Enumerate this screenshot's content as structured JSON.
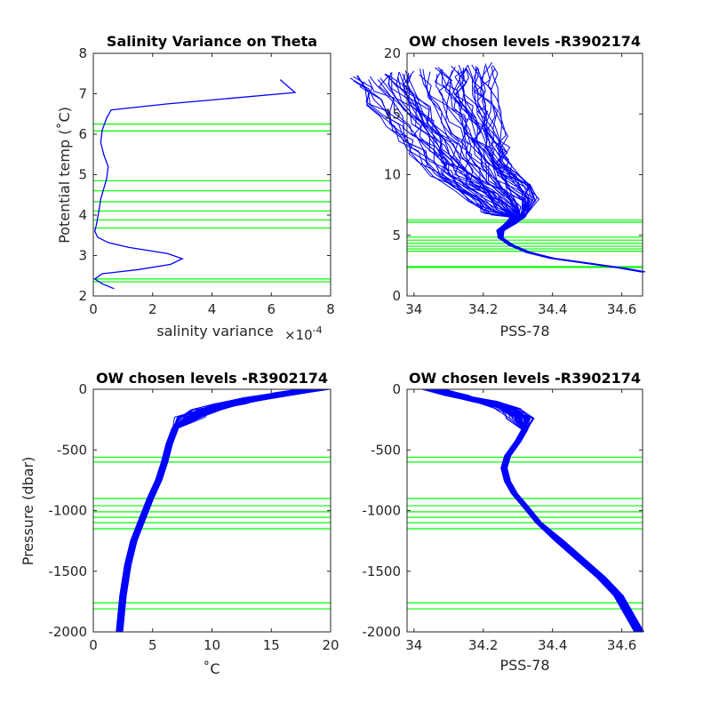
{
  "chart_data": [
    {
      "type": "line",
      "title": "Salinity Variance on Theta",
      "xlabel": "salinity variance",
      "x_exponent_label": "×10",
      "x_exponent_power": "-4",
      "ylabel": "Potential temp (˚C)",
      "xlim": [
        0,
        8
      ],
      "ylim": [
        2,
        8
      ],
      "xticks": [
        "0",
        "2",
        "4",
        "6",
        "8"
      ],
      "yticks": [
        "2",
        "3",
        "4",
        "5",
        "6",
        "7",
        "8"
      ],
      "series_color": "#0000ff",
      "level_color": "#00ff00",
      "variance_curve": [
        [
          0.7,
          2.18
        ],
        [
          0.3,
          2.3
        ],
        [
          0.05,
          2.42
        ],
        [
          0.3,
          2.55
        ],
        [
          1.5,
          2.65
        ],
        [
          2.6,
          2.78
        ],
        [
          3.0,
          2.92
        ],
        [
          2.5,
          3.05
        ],
        [
          1.2,
          3.2
        ],
        [
          0.5,
          3.32
        ],
        [
          0.15,
          3.45
        ],
        [
          0.05,
          3.6
        ],
        [
          0.1,
          3.75
        ],
        [
          0.15,
          3.95
        ],
        [
          0.2,
          4.15
        ],
        [
          0.25,
          4.4
        ],
        [
          0.35,
          4.65
        ],
        [
          0.45,
          4.9
        ],
        [
          0.5,
          5.2
        ],
        [
          0.35,
          5.5
        ],
        [
          0.25,
          5.8
        ],
        [
          0.3,
          6.1
        ],
        [
          0.45,
          6.4
        ],
        [
          0.6,
          6.6
        ],
        [
          2.5,
          6.75
        ],
        [
          6.8,
          7.03
        ],
        [
          6.3,
          7.35
        ]
      ],
      "levels": [
        2.35,
        2.42,
        3.68,
        3.88,
        4.1,
        4.33,
        4.6,
        4.85,
        6.08,
        6.25
      ]
    },
    {
      "type": "line",
      "title": "OW chosen levels -R3902174",
      "xlabel": "PSS-78",
      "ylabel": "",
      "xlim": [
        33.98,
        34.66
      ],
      "ylim": [
        0,
        20
      ],
      "xticks": [
        "34",
        "34.2",
        "34.4",
        "34.6"
      ],
      "yticks": [
        "0",
        "5",
        "10",
        "15",
        "20"
      ],
      "series_color": "#0000ff",
      "level_color": "#00ff00",
      "profile_count": 60,
      "mean_profile": [
        [
          34.66,
          2.0
        ],
        [
          34.6,
          2.3
        ],
        [
          34.5,
          2.7
        ],
        [
          34.4,
          3.1
        ],
        [
          34.33,
          3.6
        ],
        [
          34.28,
          4.2
        ],
        [
          34.25,
          4.8
        ],
        [
          34.25,
          5.4
        ],
        [
          34.28,
          6.0
        ],
        [
          34.3,
          6.5
        ],
        [
          34.28,
          7.5
        ],
        [
          34.25,
          8.5
        ],
        [
          34.2,
          9.5
        ],
        [
          34.17,
          10.5
        ],
        [
          34.15,
          11.5
        ],
        [
          34.13,
          12.5
        ],
        [
          34.11,
          13.5
        ],
        [
          34.09,
          14.5
        ],
        [
          34.07,
          15.5
        ],
        [
          34.05,
          16.5
        ],
        [
          34.04,
          17.5
        ],
        [
          34.03,
          18.5
        ]
      ],
      "levels": [
        2.35,
        2.42,
        3.68,
        3.88,
        4.1,
        4.33,
        4.6,
        4.85,
        6.08,
        6.25
      ]
    },
    {
      "type": "line",
      "title": "OW chosen levels -R3902174",
      "xlabel": "˚C",
      "ylabel": "Pressure (dbar)",
      "xlim": [
        0,
        20
      ],
      "ylim": [
        -2000,
        0
      ],
      "xticks": [
        "0",
        "5",
        "10",
        "15",
        "20"
      ],
      "yticks": [
        "-2000",
        "-1500",
        "-1000",
        "-500",
        "0"
      ],
      "series_color": "#0000ff",
      "level_color": "#00ff00",
      "profile_count": 60,
      "mean_profile": [
        [
          2.2,
          -2000
        ],
        [
          2.5,
          -1700
        ],
        [
          2.9,
          -1450
        ],
        [
          3.4,
          -1250
        ],
        [
          4.2,
          -1050
        ],
        [
          4.8,
          -900
        ],
        [
          5.5,
          -750
        ],
        [
          6.0,
          -600
        ],
        [
          6.4,
          -450
        ],
        [
          6.9,
          -320
        ],
        [
          8.0,
          -230
        ],
        [
          9.5,
          -170
        ],
        [
          11.5,
          -120
        ],
        [
          14.0,
          -70
        ],
        [
          16.5,
          -30
        ],
        [
          18.5,
          0
        ]
      ],
      "levels": [
        -560,
        -600,
        -900,
        -960,
        -1010,
        -1055,
        -1100,
        -1150,
        -1760,
        -1810
      ]
    },
    {
      "type": "line",
      "title": "OW chosen levels -R3902174",
      "xlabel": "PSS-78",
      "ylabel": "",
      "xlim": [
        33.98,
        34.66
      ],
      "ylim": [
        -2000,
        0
      ],
      "xticks": [
        "34",
        "34.2",
        "34.4",
        "34.6"
      ],
      "yticks": [
        "-2000",
        "-1500",
        "-1000",
        "-500",
        "0"
      ],
      "series_color": "#0000ff",
      "level_color": "#00ff00",
      "profile_count": 60,
      "mean_profile": [
        [
          34.05,
          0
        ],
        [
          34.12,
          -50
        ],
        [
          34.2,
          -100
        ],
        [
          34.27,
          -160
        ],
        [
          34.31,
          -240
        ],
        [
          34.32,
          -330
        ],
        [
          34.3,
          -430
        ],
        [
          34.27,
          -550
        ],
        [
          34.26,
          -650
        ],
        [
          34.27,
          -760
        ],
        [
          34.29,
          -860
        ],
        [
          34.32,
          -960
        ],
        [
          34.36,
          -1100
        ],
        [
          34.42,
          -1250
        ],
        [
          34.48,
          -1400
        ],
        [
          34.54,
          -1550
        ],
        [
          34.59,
          -1700
        ],
        [
          34.62,
          -1850
        ],
        [
          34.65,
          -2000
        ]
      ],
      "levels": [
        -560,
        -600,
        -900,
        -960,
        -1010,
        -1055,
        -1100,
        -1150,
        -1760,
        -1810
      ]
    }
  ]
}
